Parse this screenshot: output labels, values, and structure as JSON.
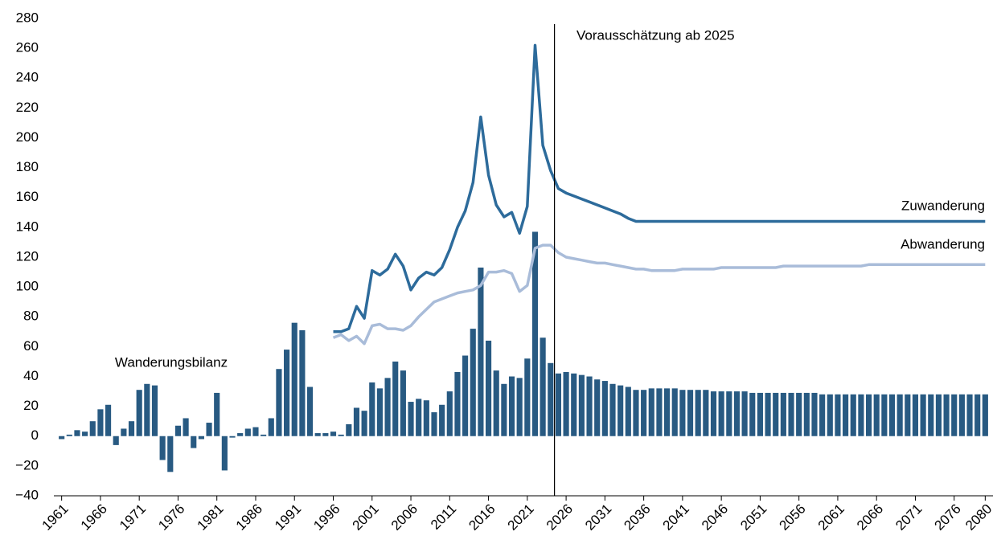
{
  "chart_data": {
    "type": "bar_line",
    "annotation": "Vorausschätzung ab 2025",
    "annotation_x": 2025,
    "x": [
      1961,
      1962,
      1963,
      1964,
      1965,
      1966,
      1967,
      1968,
      1969,
      1970,
      1971,
      1972,
      1973,
      1974,
      1975,
      1976,
      1977,
      1978,
      1979,
      1980,
      1981,
      1982,
      1983,
      1984,
      1985,
      1986,
      1987,
      1988,
      1989,
      1990,
      1991,
      1992,
      1993,
      1994,
      1995,
      1996,
      1997,
      1998,
      1999,
      2000,
      2001,
      2002,
      2003,
      2004,
      2005,
      2006,
      2007,
      2008,
      2009,
      2010,
      2011,
      2012,
      2013,
      2014,
      2015,
      2016,
      2017,
      2018,
      2019,
      2020,
      2021,
      2022,
      2023,
      2024,
      2025,
      2026,
      2027,
      2028,
      2029,
      2030,
      2031,
      2032,
      2033,
      2034,
      2035,
      2036,
      2037,
      2038,
      2039,
      2040,
      2041,
      2042,
      2043,
      2044,
      2045,
      2046,
      2047,
      2048,
      2049,
      2050,
      2051,
      2052,
      2053,
      2054,
      2055,
      2056,
      2057,
      2058,
      2059,
      2060,
      2061,
      2062,
      2063,
      2064,
      2065,
      2066,
      2067,
      2068,
      2069,
      2070,
      2071,
      2072,
      2073,
      2074,
      2075,
      2076,
      2077,
      2078,
      2079,
      2080
    ],
    "xlim": [
      1960,
      2081
    ],
    "xticks": [
      1961,
      1966,
      1971,
      1976,
      1981,
      1986,
      1991,
      1996,
      2001,
      2006,
      2011,
      2016,
      2021,
      2026,
      2031,
      2036,
      2041,
      2046,
      2051,
      2056,
      2061,
      2066,
      2071,
      2076,
      2080
    ],
    "ylim": [
      -40,
      280
    ],
    "yticks": [
      {
        "value": -40,
        "label": "−40"
      },
      {
        "value": -20,
        "label": "−20"
      },
      0,
      20,
      40,
      60,
      80,
      100,
      120,
      140,
      160,
      180,
      200,
      220,
      240,
      260,
      280
    ],
    "series": [
      {
        "name": "Wanderungsbilanz",
        "kind": "bar",
        "color": "#285a82",
        "values": [
          -2,
          1,
          4,
          3,
          10,
          18,
          21,
          -6,
          5,
          10,
          31,
          35,
          34,
          -16,
          -24,
          7,
          12,
          -8,
          -2,
          9,
          29,
          -23,
          -1,
          2,
          5,
          6,
          1,
          12,
          45,
          58,
          76,
          71,
          33,
          2,
          2,
          3,
          1,
          8,
          19,
          17,
          36,
          32,
          39,
          50,
          44,
          23,
          25,
          24,
          16,
          21,
          30,
          43,
          54,
          72,
          113,
          64,
          44,
          35,
          40,
          39,
          52,
          137,
          66,
          49,
          42,
          43,
          42,
          41,
          40,
          38,
          37,
          35,
          34,
          33,
          31,
          31,
          32,
          32,
          32,
          32,
          31,
          31,
          31,
          31,
          30,
          30,
          30,
          30,
          30,
          29,
          29,
          29,
          29,
          29,
          29,
          29,
          29,
          29,
          28,
          28,
          28,
          28,
          28,
          28,
          28,
          28,
          28,
          28,
          28,
          28,
          28,
          28,
          28,
          28,
          28,
          28,
          28,
          28,
          28,
          28
        ]
      },
      {
        "name": "Zuwanderung",
        "kind": "line",
        "color": "#2d6b9b",
        "values": [
          null,
          null,
          null,
          null,
          null,
          null,
          null,
          null,
          null,
          null,
          null,
          null,
          null,
          null,
          null,
          null,
          null,
          null,
          null,
          null,
          null,
          null,
          null,
          null,
          null,
          null,
          null,
          null,
          null,
          null,
          null,
          null,
          null,
          null,
          null,
          70,
          70,
          72,
          87,
          79,
          111,
          108,
          112,
          122,
          114,
          98,
          106,
          110,
          108,
          113,
          125,
          140,
          151,
          170,
          214,
          175,
          155,
          147,
          150,
          136,
          154,
          262,
          195,
          178,
          166,
          163,
          161,
          159,
          157,
          155,
          153,
          151,
          149,
          146,
          144,
          144,
          144,
          144,
          144,
          144,
          144,
          144,
          144,
          144,
          144,
          144,
          144,
          144,
          144,
          144,
          144,
          144,
          144,
          144,
          144,
          144,
          144,
          144,
          144,
          144,
          144,
          144,
          144,
          144,
          144,
          144,
          144,
          144,
          144,
          144,
          144,
          144,
          144,
          144,
          144,
          144,
          144,
          144,
          144,
          144
        ]
      },
      {
        "name": "Abwanderung",
        "kind": "line",
        "color": "#a9bcd9",
        "values": [
          null,
          null,
          null,
          null,
          null,
          null,
          null,
          null,
          null,
          null,
          null,
          null,
          null,
          null,
          null,
          null,
          null,
          null,
          null,
          null,
          null,
          null,
          null,
          null,
          null,
          null,
          null,
          null,
          null,
          null,
          null,
          null,
          null,
          null,
          null,
          66,
          68,
          64,
          67,
          62,
          74,
          75,
          72,
          72,
          71,
          74,
          80,
          85,
          90,
          92,
          94,
          96,
          97,
          98,
          101,
          110,
          110,
          111,
          109,
          97,
          101,
          126,
          128,
          128,
          123,
          120,
          119,
          118,
          117,
          116,
          116,
          115,
          114,
          113,
          112,
          112,
          111,
          111,
          111,
          111,
          112,
          112,
          112,
          112,
          112,
          113,
          113,
          113,
          113,
          113,
          113,
          113,
          113,
          114,
          114,
          114,
          114,
          114,
          114,
          114,
          114,
          114,
          114,
          114,
          115,
          115,
          115,
          115,
          115,
          115,
          115,
          115,
          115,
          115,
          115,
          115,
          115,
          115,
          115,
          115
        ]
      }
    ]
  }
}
